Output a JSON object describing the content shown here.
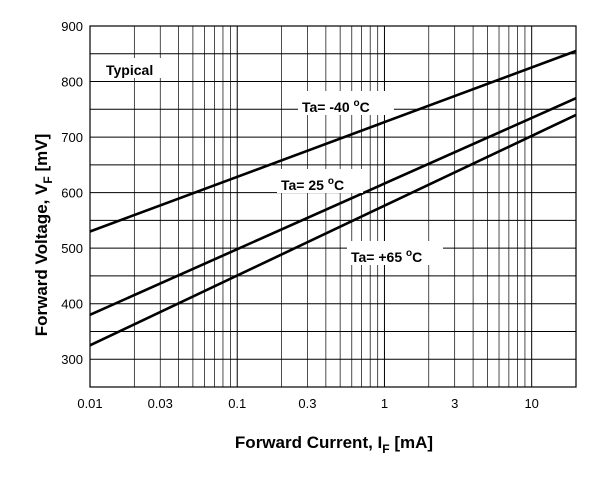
{
  "chart_data": {
    "type": "line",
    "x_scale": "log",
    "xlim": [
      0.01,
      20
    ],
    "ylim": [
      250,
      900
    ],
    "grid": true,
    "x_ticks": [
      0.01,
      0.03,
      0.1,
      0.3,
      1,
      3,
      10
    ],
    "x_tick_labels": [
      "0.01",
      "0.03",
      "0.1",
      "0.3",
      "1",
      "3",
      "10"
    ],
    "y_ticks": [
      300,
      400,
      500,
      600,
      700,
      800,
      900
    ],
    "y_tick_labels": [
      "300",
      "400",
      "500",
      "600",
      "700",
      "800",
      "900"
    ],
    "xlabel": {
      "main": "Forward Current, I",
      "sub": "F",
      "unit": " [mA]"
    },
    "ylabel": {
      "main": "Forward Voltage, V",
      "sub": "F",
      "unit": " [mV]"
    },
    "typical_label": "Typical",
    "series": [
      {
        "name": "Ta= -40 °C",
        "label_main": "Ta= -40 ",
        "label_sup": "o",
        "label_unit": "C",
        "x": [
          0.01,
          20
        ],
        "y": [
          530,
          855
        ]
      },
      {
        "name": "Ta= 25 °C",
        "label_main": "Ta= 25 ",
        "label_sup": "o",
        "label_unit": "C",
        "x": [
          0.01,
          20
        ],
        "y": [
          380,
          770
        ]
      },
      {
        "name": "Ta= +65 °C",
        "label_main": "Ta= +65 ",
        "label_sup": "o",
        "label_unit": "C",
        "x": [
          0.01,
          20
        ],
        "y": [
          325,
          740
        ]
      }
    ]
  }
}
